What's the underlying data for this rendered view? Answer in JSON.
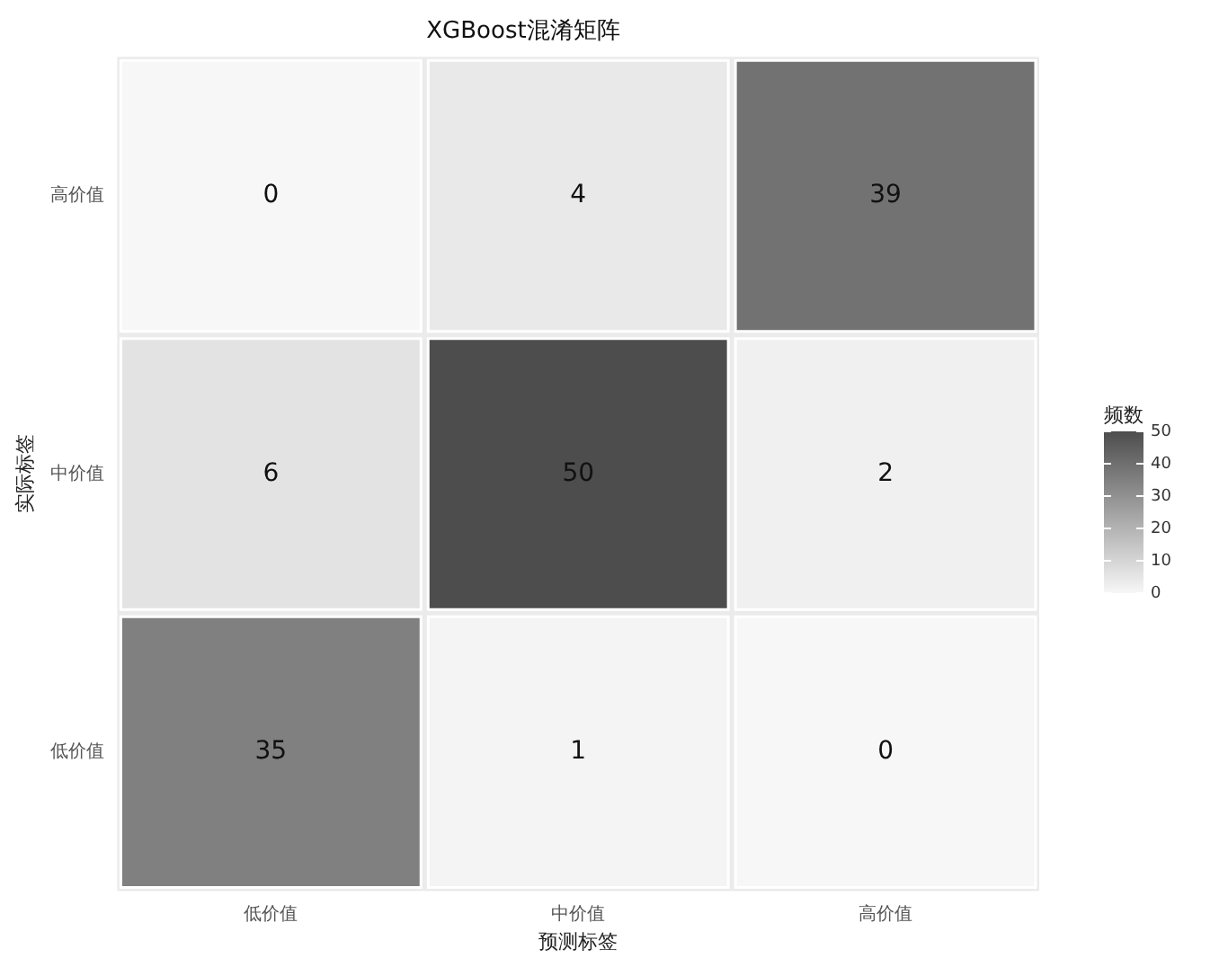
{
  "chart_data": {
    "type": "heatmap",
    "title": "XGBoost混淆矩阵",
    "xlabel": "预测标签",
    "ylabel": "实际标签",
    "clabel": "频数",
    "categories": [
      "低价值",
      "中价值",
      "高价值"
    ],
    "y_categories": [
      "高价值",
      "中价值",
      "低价值"
    ],
    "cells": [
      [
        0,
        4,
        39
      ],
      [
        6,
        50,
        2
      ],
      [
        35,
        1,
        0
      ]
    ],
    "clim": [
      0,
      50
    ],
    "cticks": [
      0,
      10,
      20,
      30,
      40,
      50
    ],
    "data_labels": true
  }
}
